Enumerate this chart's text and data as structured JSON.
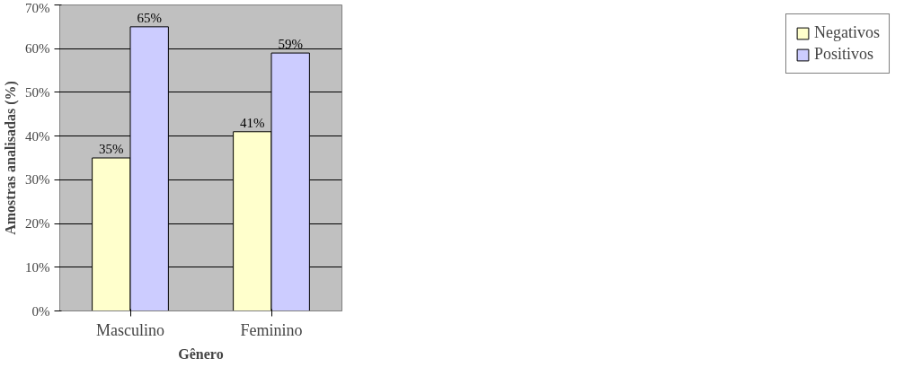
{
  "chart_data": {
    "type": "bar",
    "xlabel": "Gênero",
    "ylabel": "Amostras analisadas (%)",
    "categories": [
      "Masculino",
      "Feminino"
    ],
    "series": [
      {
        "name": "Negativos",
        "color": "#ffffcc",
        "values": [
          35,
          41
        ],
        "value_labels": [
          "35%",
          "41%"
        ]
      },
      {
        "name": "Positivos",
        "color": "#ccccff",
        "values": [
          65,
          59
        ],
        "value_labels": [
          "65%",
          "59%"
        ]
      }
    ],
    "ylim": [
      0,
      70
    ],
    "yticks": [
      {
        "value": 0,
        "label": "0%"
      },
      {
        "value": 10,
        "label": "10%"
      },
      {
        "value": 20,
        "label": "20%"
      },
      {
        "value": 30,
        "label": "30%"
      },
      {
        "value": 40,
        "label": "40%"
      },
      {
        "value": 50,
        "label": "50%"
      },
      {
        "value": 60,
        "label": "60%"
      },
      {
        "value": 70,
        "label": "70%"
      }
    ],
    "grid": "y",
    "legend": "right"
  }
}
